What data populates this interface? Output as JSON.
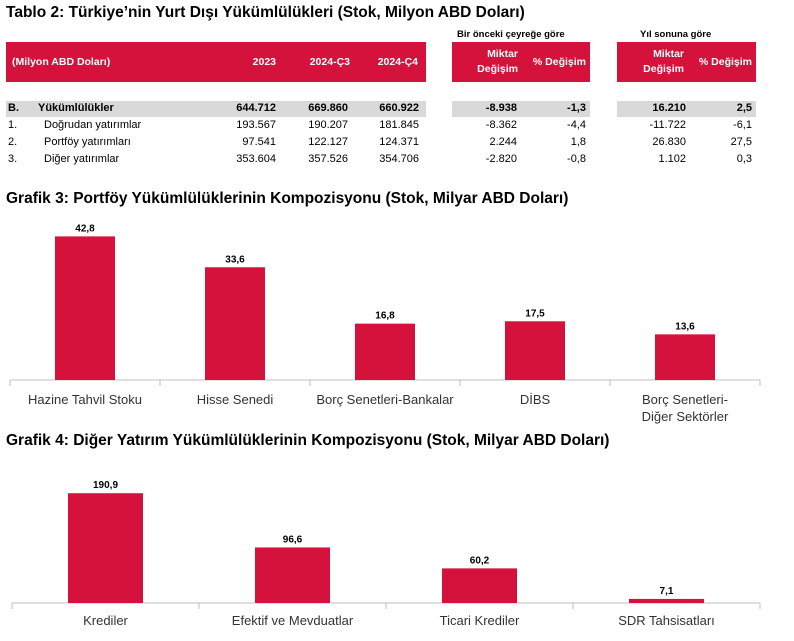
{
  "table": {
    "title": "Tablo 2: Türkiye’nin Yurt Dışı Yükümlülükleri (Stok, Milyon ABD Doları)",
    "group_prev_quarter": "Bir önceki çeyreğe göre",
    "group_year_end": "Yıl sonuna göre",
    "header_label": "(Milyon ABD Doları)",
    "col_2023": "2023",
    "col_q3": "2024-Ç3",
    "col_q4": "2024-Ç4",
    "amount_change_1": "Miktar",
    "amount_change_2": "Değişim",
    "pct_change": "% Değişim",
    "rows": [
      {
        "code": "B.",
        "label": "Yükümlülükler",
        "v2023": "644.712",
        "q3": "669.860",
        "q4": "660.922",
        "qchg": "-8.938",
        "qpct": "-1,3",
        "ychg": "16.210",
        "ypct": "2,5"
      },
      {
        "code": "1.",
        "label": "Doğrudan yatırımlar",
        "v2023": "193.567",
        "q3": "190.207",
        "q4": "181.845",
        "qchg": "-8.362",
        "qpct": "-4,4",
        "ychg": "-11.722",
        "ypct": "-6,1"
      },
      {
        "code": "2.",
        "label": "Portföy yatırımları",
        "v2023": "97.541",
        "q3": "122.127",
        "q4": "124.371",
        "qchg": "2.244",
        "qpct": "1,8",
        "ychg": "26.830",
        "ypct": "27,5"
      },
      {
        "code": "3.",
        "label": "Diğer yatırımlar",
        "v2023": "353.604",
        "q3": "357.526",
        "q4": "354.706",
        "qchg": "-2.820",
        "qpct": "-0,8",
        "ychg": "1.102",
        "ypct": "0,3"
      }
    ]
  },
  "chart_data": [
    {
      "type": "bar",
      "title": "Grafik 3: Portföy Yükümlülüklerinin Kompozisyonu (Stok, Milyar ABD Doları)",
      "categories": [
        "Hazine Tahvil Stoku",
        "Hisse Senedi",
        "Borç Senetleri-Bankalar",
        "DİBS",
        "Borç Senetleri-Diğer Sektörler"
      ],
      "values": [
        42.8,
        33.6,
        16.8,
        17.5,
        13.6
      ],
      "value_labels": [
        "42,8",
        "33,6",
        "16,8",
        "17,5",
        "13,6"
      ],
      "ylim": [
        0,
        45
      ],
      "bar_color": "#d4123b",
      "grid": false
    },
    {
      "type": "bar",
      "title": "Grafik 4: Diğer Yatırım Yükümlülüklerinin Kompozisyonu (Stok, Milyar ABD Doları)",
      "categories": [
        "Krediler",
        "Efektif ve Mevduatlar",
        "Ticari Krediler",
        "SDR Tahsisatları"
      ],
      "values": [
        190.9,
        96.6,
        60.2,
        7.1
      ],
      "value_labels": [
        "190,9",
        "96,6",
        "60,2",
        "7,1"
      ],
      "ylim": [
        0,
        200
      ],
      "bar_color": "#d4123b",
      "grid": false
    }
  ]
}
